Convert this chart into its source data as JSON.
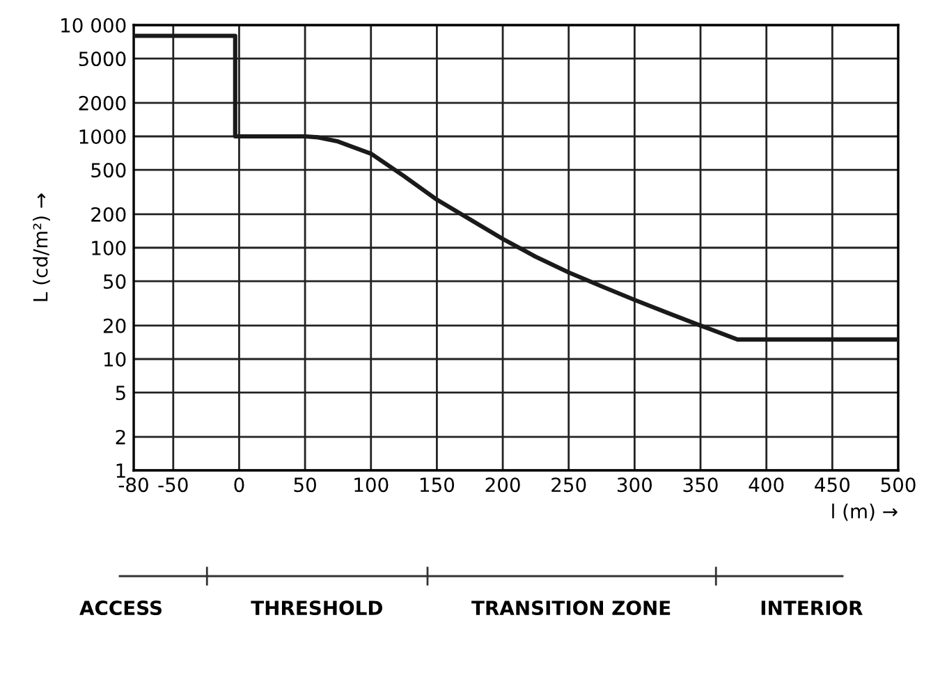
{
  "chart_data": {
    "type": "line",
    "xlabel": "l (m) →",
    "ylabel": "L (cd/m²) →",
    "series": [
      {
        "color": "#1a1a1a",
        "x": [
          -80,
          -3,
          -3,
          50,
          60,
          75,
          100,
          125,
          150,
          175,
          200,
          225,
          250,
          275,
          300,
          325,
          350,
          378,
          500
        ],
        "values": [
          8000,
          8000,
          1000,
          1000,
          980,
          900,
          700,
          440,
          270,
          180,
          120,
          83,
          60,
          45,
          34,
          26,
          20,
          15,
          15
        ]
      }
    ],
    "log": "y",
    "xlim": [
      -80,
      500
    ],
    "ylim": [
      1,
      10000
    ],
    "xticks": [
      -80,
      -50,
      0,
      50,
      100,
      150,
      200,
      250,
      300,
      350,
      400,
      450,
      500
    ],
    "yticks": [
      1,
      2,
      5,
      10,
      20,
      50,
      100,
      200,
      500,
      1000,
      2000,
      5000,
      {
        "value": 10000,
        "label": "10 000"
      }
    ],
    "grid": true,
    "marker": "none",
    "line_style": "solid",
    "annotations": [
      "ACCESS",
      "THRESHOLD",
      "TRANSITION ZONE",
      "INTERIOR"
    ]
  }
}
